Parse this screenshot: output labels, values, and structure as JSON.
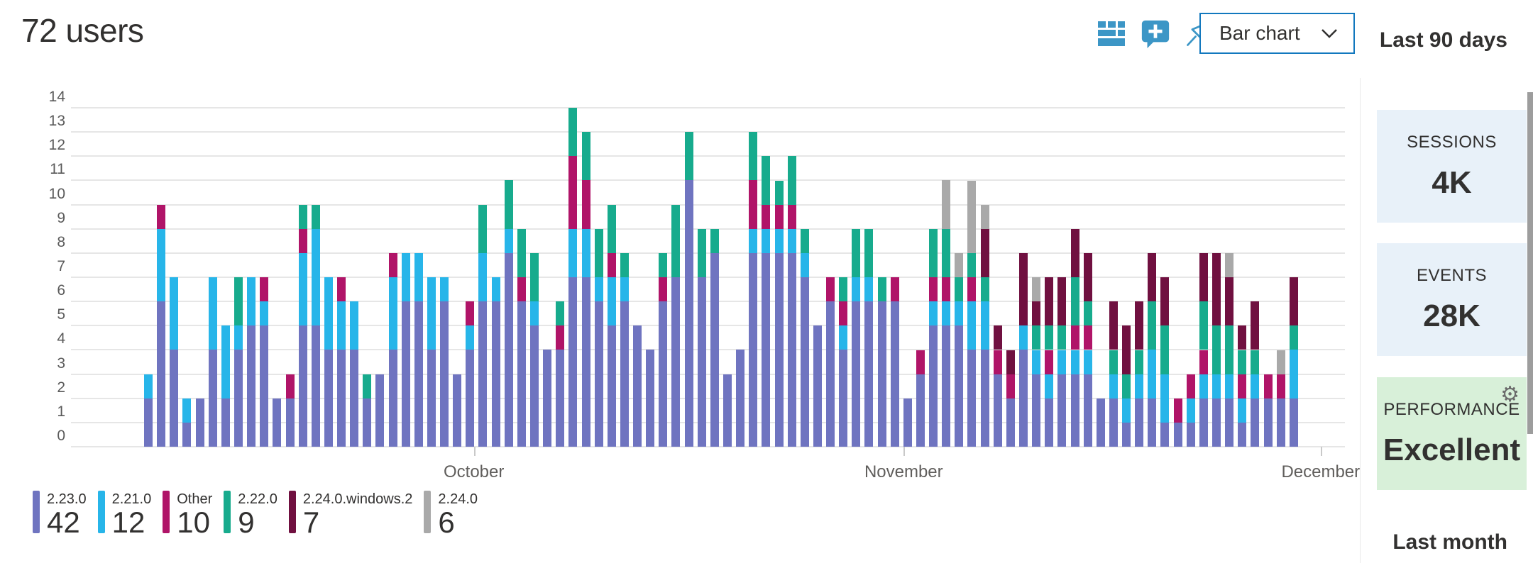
{
  "header": {
    "title": "72 users",
    "chart_type_label": "Bar chart",
    "icons": [
      "table-view-icon",
      "add-comment-icon",
      "pin-icon",
      "chevron-down-icon"
    ]
  },
  "right_panel": {
    "period_label": "Last 90 days",
    "cards": [
      {
        "label": "SESSIONS",
        "value": "4K",
        "bg": "#e8f1f9"
      },
      {
        "label": "EVENTS",
        "value": "28K",
        "bg": "#e8f1f9"
      },
      {
        "label": "PERFORMANCE",
        "value": "Excellent",
        "bg": "#d8f0d9",
        "icon": "gear-icon"
      }
    ],
    "next_section_label": "Last month"
  },
  "legend": {
    "items": [
      {
        "label": "2.23.0",
        "value": "42",
        "color": "#6f74c0"
      },
      {
        "label": "2.21.0",
        "value": "12",
        "color": "#27b5e9"
      },
      {
        "label": "Other",
        "value": "10",
        "color": "#b01468"
      },
      {
        "label": "2.22.0",
        "value": "9",
        "color": "#17ab8d"
      },
      {
        "label": "2.24.0.windows.2",
        "value": "7",
        "color": "#701040"
      },
      {
        "label": "2.24.0",
        "value": "6",
        "color": "#a9a9a9"
      }
    ]
  },
  "chart_data": {
    "type": "bar",
    "stacked": true,
    "title": "72 users",
    "xlabel": "",
    "ylabel": "",
    "ylim": [
      0,
      14
    ],
    "ytick_step": 1,
    "grid": true,
    "legend_position": "bottom",
    "n_days": 90,
    "month_ticks": [
      {
        "label": "October",
        "day": 26.3
      },
      {
        "label": "November",
        "day": 59.7
      },
      {
        "label": "December",
        "day": 92.1
      }
    ],
    "series": [
      {
        "name": "2.23.0",
        "color": "#6f74c0",
        "values": [
          2,
          6,
          4,
          1,
          2,
          4,
          2,
          4,
          5,
          5,
          2,
          2,
          5,
          5,
          4,
          4,
          4,
          2,
          3,
          4,
          6,
          6,
          4,
          6,
          3,
          4,
          6,
          6,
          8,
          6,
          5,
          4,
          4,
          7,
          7,
          6,
          5,
          6,
          5,
          4,
          6,
          7,
          11,
          7,
          8,
          3,
          4,
          8,
          8,
          8,
          8,
          7,
          5,
          6,
          4,
          6,
          6,
          6,
          6,
          2,
          3,
          5,
          5,
          5,
          4,
          4,
          3,
          2,
          4,
          3,
          2,
          3,
          3,
          3,
          2,
          2,
          1,
          2,
          2,
          1,
          1,
          1,
          2,
          2,
          2,
          1,
          2,
          2,
          2,
          2
        ]
      },
      {
        "name": "2.21.0",
        "color": "#27b5e9",
        "values": [
          1,
          3,
          3,
          1,
          0,
          3,
          3,
          1,
          2,
          1,
          0,
          0,
          3,
          4,
          3,
          2,
          2,
          0,
          0,
          3,
          2,
          2,
          3,
          1,
          0,
          1,
          2,
          1,
          1,
          0,
          1,
          0,
          0,
          2,
          2,
          1,
          2,
          1,
          0,
          0,
          0,
          0,
          0,
          0,
          0,
          0,
          0,
          1,
          1,
          1,
          1,
          1,
          0,
          0,
          1,
          1,
          1,
          0,
          0,
          0,
          0,
          1,
          1,
          1,
          2,
          2,
          0,
          0,
          1,
          1,
          1,
          1,
          1,
          1,
          0,
          1,
          1,
          1,
          2,
          2,
          0,
          1,
          1,
          1,
          1,
          1,
          1,
          0,
          0,
          2
        ]
      },
      {
        "name": "Other",
        "color": "#b01468",
        "values": [
          0,
          1,
          0,
          0,
          0,
          0,
          0,
          0,
          0,
          1,
          0,
          1,
          1,
          0,
          0,
          1,
          0,
          0,
          0,
          1,
          0,
          0,
          0,
          0,
          0,
          1,
          0,
          0,
          0,
          1,
          0,
          0,
          1,
          3,
          2,
          0,
          1,
          0,
          0,
          0,
          1,
          0,
          0,
          0,
          0,
          0,
          0,
          2,
          1,
          1,
          1,
          0,
          0,
          1,
          1,
          0,
          0,
          0,
          1,
          0,
          1,
          1,
          1,
          0,
          1,
          0,
          1,
          1,
          0,
          0,
          1,
          0,
          1,
          1,
          0,
          0,
          0,
          0,
          0,
          0,
          1,
          1,
          1,
          0,
          0,
          1,
          0,
          1,
          1,
          0
        ]
      },
      {
        "name": "2.22.0",
        "color": "#17ab8d",
        "values": [
          0,
          0,
          0,
          0,
          0,
          0,
          0,
          2,
          0,
          0,
          0,
          0,
          1,
          1,
          0,
          0,
          0,
          1,
          0,
          0,
          0,
          0,
          0,
          0,
          0,
          0,
          2,
          0,
          2,
          2,
          2,
          0,
          1,
          2,
          2,
          2,
          2,
          1,
          0,
          0,
          1,
          3,
          2,
          2,
          1,
          0,
          0,
          2,
          2,
          1,
          2,
          1,
          0,
          0,
          1,
          2,
          2,
          1,
          0,
          0,
          0,
          2,
          2,
          1,
          1,
          1,
          0,
          0,
          0,
          1,
          1,
          1,
          2,
          1,
          0,
          1,
          1,
          1,
          2,
          2,
          0,
          0,
          2,
          2,
          2,
          1,
          1,
          0,
          0,
          1
        ]
      },
      {
        "name": "2.24.0.windows.2",
        "color": "#701040",
        "values": [
          0,
          0,
          0,
          0,
          0,
          0,
          0,
          0,
          0,
          0,
          0,
          0,
          0,
          0,
          0,
          0,
          0,
          0,
          0,
          0,
          0,
          0,
          0,
          0,
          0,
          0,
          0,
          0,
          0,
          0,
          0,
          0,
          0,
          0,
          0,
          0,
          0,
          0,
          0,
          0,
          0,
          0,
          0,
          0,
          0,
          0,
          0,
          0,
          0,
          0,
          0,
          0,
          0,
          0,
          0,
          0,
          0,
          0,
          0,
          0,
          0,
          0,
          0,
          0,
          0,
          2,
          1,
          1,
          3,
          1,
          2,
          2,
          2,
          2,
          0,
          2,
          2,
          2,
          2,
          2,
          0,
          0,
          2,
          3,
          2,
          1,
          2,
          0,
          0,
          2
        ]
      },
      {
        "name": "2.24.0",
        "color": "#a9a9a9",
        "values": [
          0,
          0,
          0,
          0,
          0,
          0,
          0,
          0,
          0,
          0,
          0,
          0,
          0,
          0,
          0,
          0,
          0,
          0,
          0,
          0,
          0,
          0,
          0,
          0,
          0,
          0,
          0,
          0,
          0,
          0,
          0,
          0,
          0,
          0,
          0,
          0,
          0,
          0,
          0,
          0,
          0,
          0,
          0,
          0,
          0,
          0,
          0,
          0,
          0,
          0,
          0,
          0,
          0,
          0,
          0,
          0,
          0,
          0,
          0,
          0,
          0,
          0,
          2,
          1,
          3,
          1,
          0,
          0,
          0,
          1,
          0,
          0,
          0,
          0,
          0,
          0,
          0,
          0,
          0,
          0,
          0,
          0,
          0,
          0,
          1,
          0,
          0,
          0,
          1,
          0
        ]
      }
    ]
  }
}
